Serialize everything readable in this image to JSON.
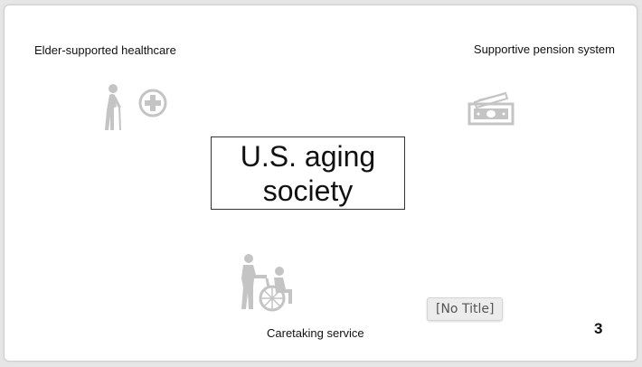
{
  "slide": {
    "title_line1": "U.S. aging",
    "title_line2": "society",
    "labels": {
      "healthcare": "Elder-supported healthcare",
      "pension": "Supportive pension system",
      "caretaking": "Caretaking service"
    },
    "tooltip": "[No Title]",
    "page_number": "3"
  },
  "icons": [
    "elderly-person-icon",
    "medical-cross-icon",
    "money-icon",
    "caretaker-wheelchair-icon"
  ],
  "colors": {
    "icon_gray": "#c4c4c4",
    "border": "#333333",
    "background": "#ffffff"
  }
}
